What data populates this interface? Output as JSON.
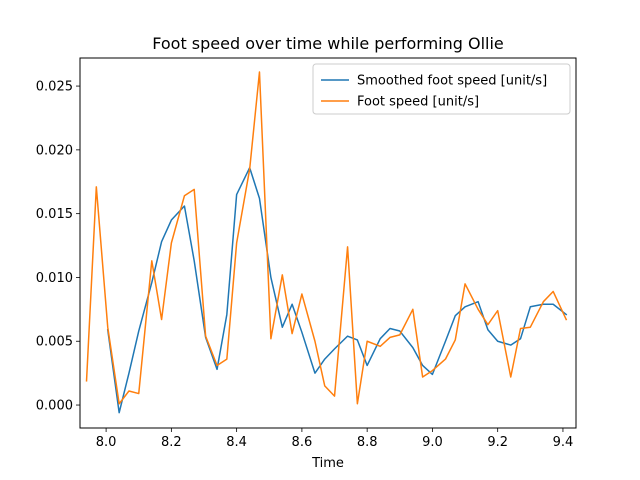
{
  "chart_data": {
    "type": "line",
    "title": "Foot speed over time while performing Ollie",
    "xlabel": "Time",
    "ylabel": "",
    "xlim": [
      7.92,
      9.44
    ],
    "ylim": [
      -0.0018,
      0.0272
    ],
    "xticks": [
      {
        "value": 8.0,
        "label": "8.0"
      },
      {
        "value": 8.2,
        "label": "8.2"
      },
      {
        "value": 8.4,
        "label": "8.4"
      },
      {
        "value": 8.6,
        "label": "8.6"
      },
      {
        "value": 8.8,
        "label": "8.8"
      },
      {
        "value": 9.0,
        "label": "9.0"
      },
      {
        "value": 9.2,
        "label": "9.2"
      },
      {
        "value": 9.4,
        "label": "9.4"
      }
    ],
    "yticks": [
      {
        "value": 0.0,
        "label": "0.000"
      },
      {
        "value": 0.005,
        "label": "0.005"
      },
      {
        "value": 0.01,
        "label": "0.010"
      },
      {
        "value": 0.015,
        "label": "0.015"
      },
      {
        "value": 0.02,
        "label": "0.020"
      },
      {
        "value": 0.025,
        "label": "0.025"
      }
    ],
    "grid": false,
    "legend_position": "top-right",
    "x": [
      7.94,
      7.97,
      8.005,
      8.04,
      8.07,
      8.1,
      8.14,
      8.17,
      8.2,
      8.24,
      8.27,
      8.305,
      8.34,
      8.37,
      8.4,
      8.44,
      8.47,
      8.505,
      8.54,
      8.57,
      8.6,
      8.64,
      8.67,
      8.7,
      8.74,
      8.77,
      8.8,
      8.84,
      8.87,
      8.9,
      8.94,
      8.97,
      9.0,
      9.04,
      9.07,
      9.1,
      9.14,
      9.17,
      9.2,
      9.24,
      9.27,
      9.3,
      9.34,
      9.37,
      9.41
    ],
    "series": [
      {
        "name": "Smoothed foot speed [unit/s]",
        "color": "#1f77b4",
        "values": [
          null,
          null,
          0.0059,
          -0.0006,
          0.0025,
          0.0058,
          0.0096,
          0.0128,
          0.0145,
          0.0156,
          0.0113,
          0.0053,
          0.0028,
          0.0071,
          0.0165,
          0.0186,
          0.0162,
          0.01,
          0.0061,
          0.0079,
          0.0057,
          0.0025,
          0.0036,
          0.0044,
          0.0054,
          0.0051,
          0.0031,
          0.0052,
          0.006,
          0.0058,
          0.0045,
          0.0031,
          0.0024,
          0.005,
          0.007,
          0.0077,
          0.0081,
          0.0059,
          0.005,
          0.0047,
          0.0052,
          0.0077,
          0.0079,
          0.0079,
          0.0071
        ]
      },
      {
        "name": "Foot speed [unit/s]",
        "color": "#ff7f0e",
        "values": [
          0.0019,
          0.0171,
          0.0061,
          0.0001,
          0.0011,
          0.0009,
          0.0113,
          0.0067,
          0.0127,
          0.0164,
          0.0169,
          0.0054,
          0.0031,
          0.0036,
          0.0127,
          0.0185,
          0.0261,
          0.0052,
          0.0102,
          0.0056,
          0.0087,
          0.005,
          0.0015,
          0.0007,
          0.0124,
          0.0001,
          0.005,
          0.0046,
          0.0053,
          0.0055,
          0.0075,
          0.0022,
          0.0027,
          0.0036,
          0.0051,
          0.0095,
          0.0075,
          0.0063,
          0.0074,
          0.0022,
          0.006,
          0.0061,
          0.0081,
          0.0089,
          0.0067
        ]
      }
    ]
  }
}
